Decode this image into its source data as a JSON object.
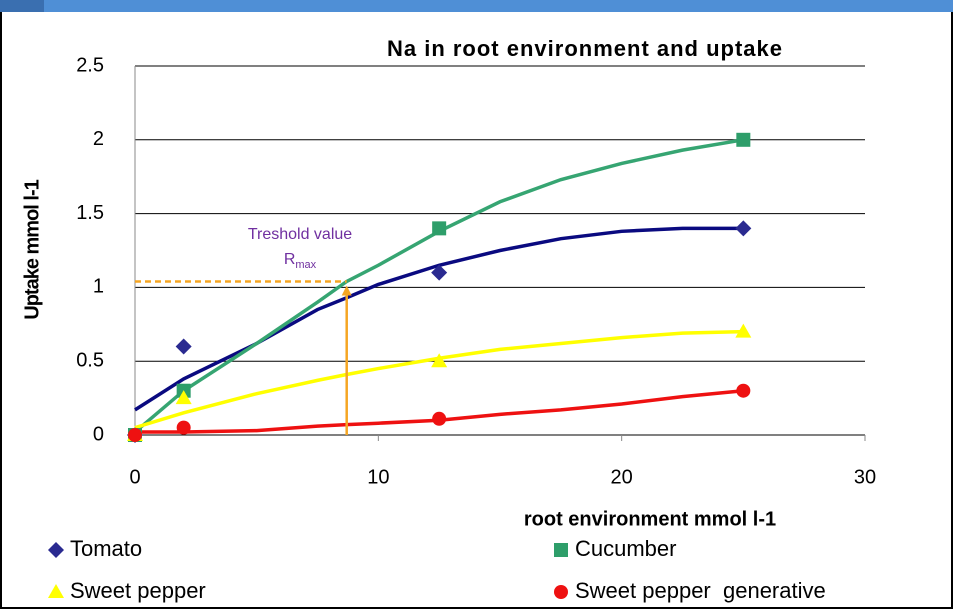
{
  "chart_data": {
    "type": "scatter",
    "title": "Na in root environment and uptake",
    "x_label": "root environment  mmol l-1",
    "y_label": "Uptake mmol l-1",
    "xlim": [
      0,
      30
    ],
    "xticks": [
      0,
      10,
      20,
      30
    ],
    "ylim": [
      0,
      2.5
    ],
    "yticks": [
      0,
      0.5,
      1,
      1.5,
      2,
      2.5
    ],
    "grid": true,
    "x": [
      0,
      2,
      12.5,
      25
    ],
    "trend_x": [
      0,
      2,
      5,
      7.5,
      8.7,
      10,
      12.5,
      15,
      17.5,
      20,
      22.5,
      25
    ],
    "series": [
      {
        "name": "Tomato",
        "marker": "diamond",
        "color": "#2a2a90",
        "line_color": "#0a0a80",
        "values": [
          0,
          0.6,
          1.1,
          1.4
        ],
        "trend": [
          0.17,
          0.38,
          0.62,
          0.85,
          0.93,
          1.02,
          1.15,
          1.25,
          1.33,
          1.38,
          1.4,
          1.4
        ]
      },
      {
        "name": "Cucumber",
        "marker": "square",
        "color": "#2e9e6a",
        "line_color": "#36a572",
        "values": [
          0,
          0.3,
          1.4,
          2
        ],
        "trend": [
          0.02,
          0.3,
          0.62,
          0.9,
          1.04,
          1.15,
          1.38,
          1.58,
          1.73,
          1.84,
          1.93,
          2.0
        ]
      },
      {
        "name": "Sweet pepper",
        "marker": "triangle",
        "color": "#ffff00",
        "line_color": "#ffff00",
        "values": [
          0,
          0.25,
          0.5,
          0.7
        ],
        "trend": [
          0.05,
          0.15,
          0.28,
          0.37,
          0.41,
          0.45,
          0.52,
          0.58,
          0.62,
          0.66,
          0.69,
          0.7
        ]
      },
      {
        "name": "Sweet pepper  generative",
        "marker": "circle",
        "color": "#ee1111",
        "line_color": "#ee1111",
        "values": [
          0,
          0.05,
          0.11,
          0.3
        ],
        "trend": [
          0.02,
          0.02,
          0.03,
          0.06,
          0.07,
          0.08,
          0.1,
          0.14,
          0.17,
          0.21,
          0.26,
          0.3
        ]
      }
    ],
    "threshold": {
      "label": "Treshold value",
      "symbol": "R",
      "subscript": "max",
      "x": 8.7,
      "y": 1.04,
      "color": "#f5a623",
      "text_color": "#7030a0"
    }
  }
}
